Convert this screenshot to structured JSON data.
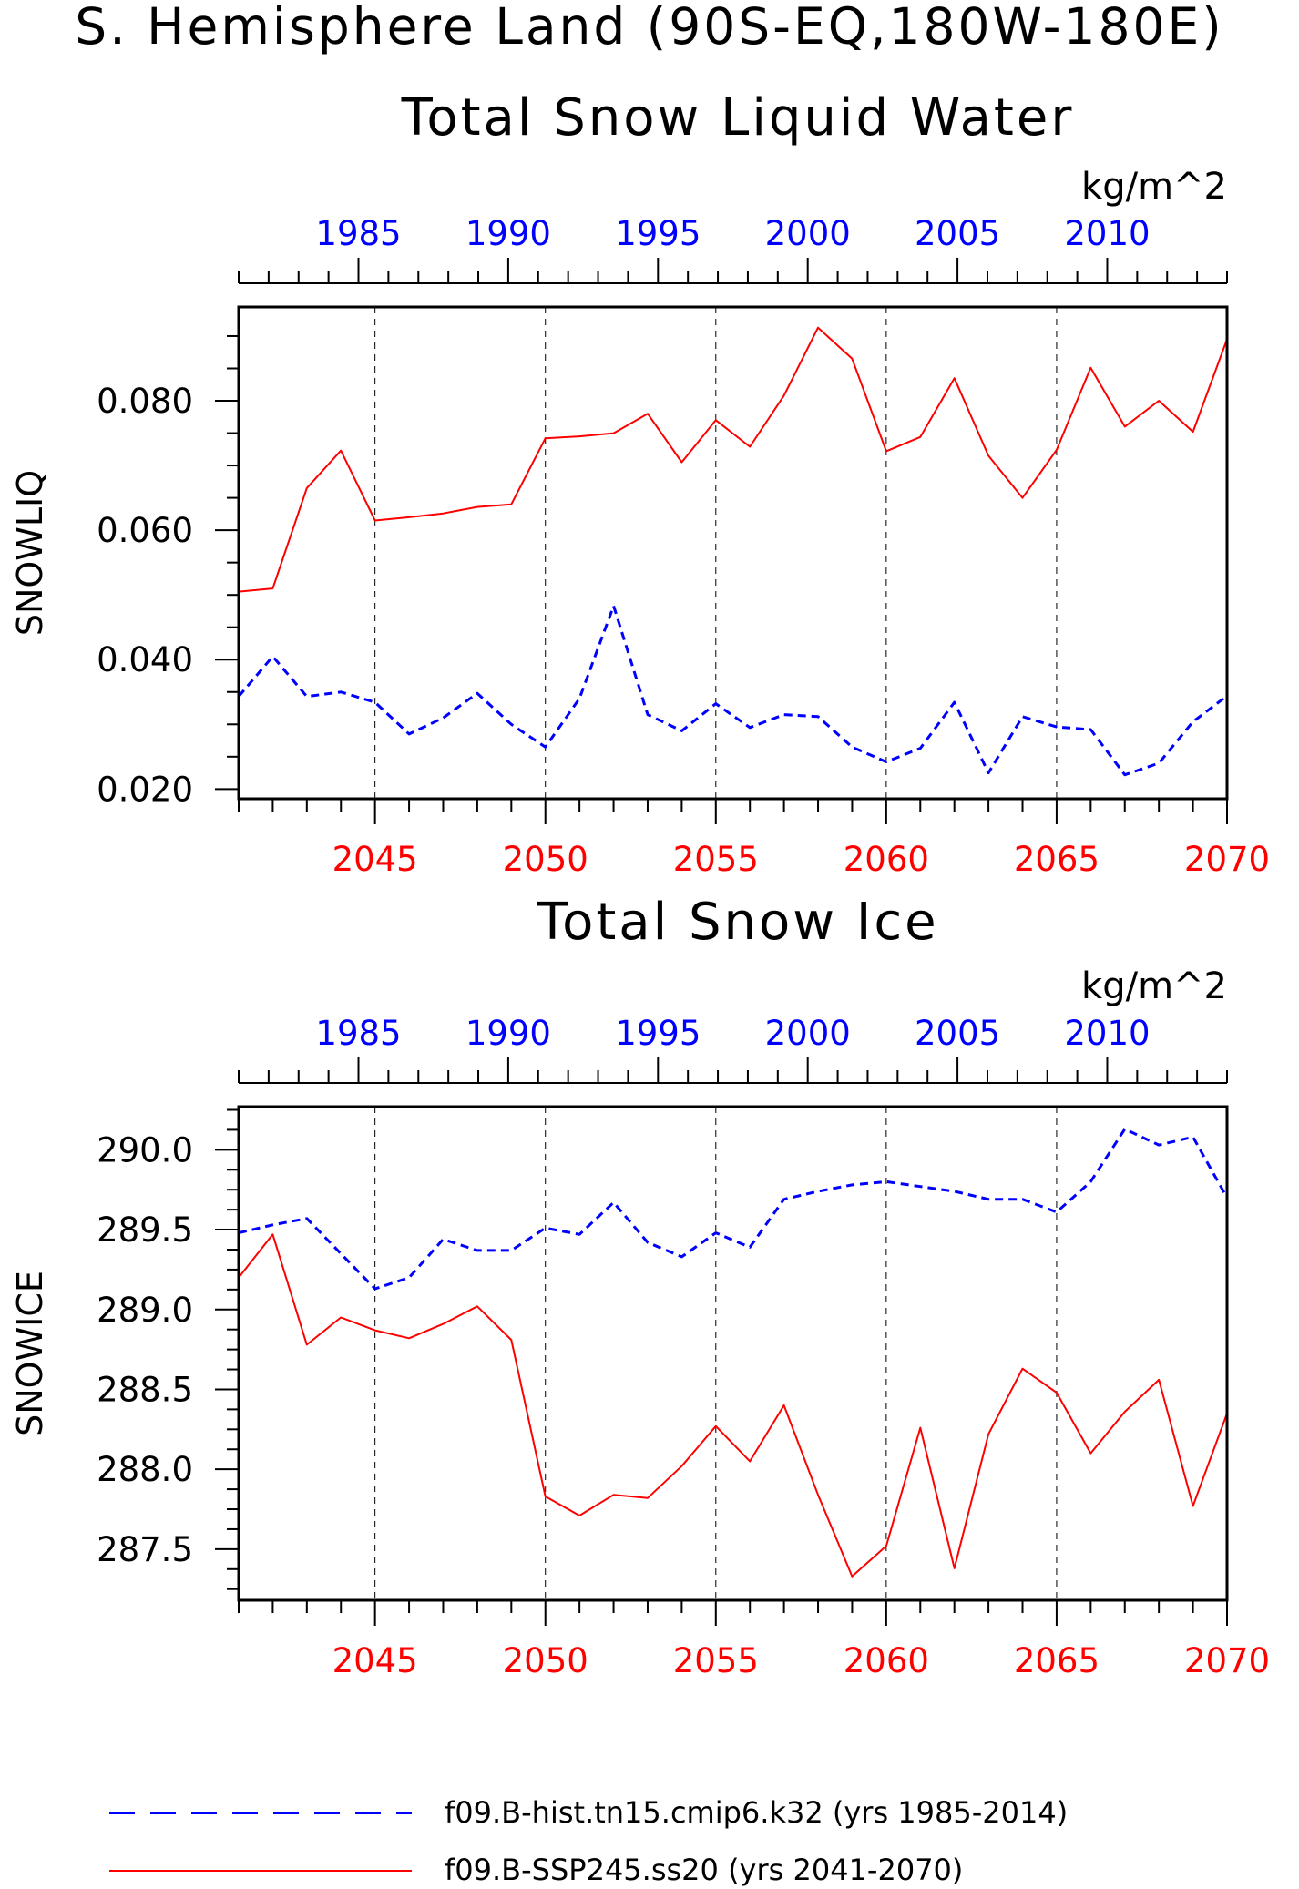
{
  "page": {
    "title_line1": "S. Hemisphere Land (90S-EQ,180W-180E)"
  },
  "legend": {
    "hist_label": "f09.B-hist.tn15.cmip6.k32 (yrs 1985-2014)",
    "ssp_label": "f09.B-SSP245.ss20 (yrs 2041-2070)"
  },
  "colors": {
    "hist": "#0000ff",
    "ssp": "#ff0000",
    "frame": "#000000",
    "grid": "#000000"
  },
  "chart_data": [
    {
      "type": "line",
      "title": "Total Snow Liquid Water",
      "units": "kg/m^2",
      "ylabel": "SNOWLIQ",
      "ylim": [
        0.0185,
        0.0945
      ],
      "yticks": [
        0.02,
        0.04,
        0.06,
        0.08
      ],
      "ytick_labels": [
        "0.020",
        "0.040",
        "0.060",
        "0.080"
      ],
      "x_bottom": {
        "range": [
          2041,
          2070
        ],
        "ticks": [
          2045,
          2050,
          2055,
          2060,
          2065,
          2070
        ],
        "tick_labels": [
          "2045",
          "2050",
          "2055",
          "2060",
          "2065",
          "2070"
        ]
      },
      "x_top": {
        "range": [
          1981,
          2014
        ],
        "ticks": [
          1985,
          1990,
          1995,
          2000,
          2005,
          2010
        ],
        "tick_labels": [
          "1985",
          "1990",
          "1995",
          "2000",
          "2005",
          "2010"
        ]
      },
      "grid": "vertical dashed at bottom-axis major ticks",
      "series": [
        {
          "name": "f09.B-SSP245.ss20 (yrs 2041-2070)",
          "style": "solid",
          "x": [
            2041,
            2042,
            2043,
            2044,
            2045,
            2046,
            2047,
            2048,
            2049,
            2050,
            2051,
            2052,
            2053,
            2054,
            2055,
            2056,
            2057,
            2058,
            2059,
            2060,
            2061,
            2062,
            2063,
            2064,
            2065,
            2066,
            2067,
            2068,
            2069,
            2070
          ],
          "values": [
            0.0505,
            0.051,
            0.0665,
            0.0723,
            0.0615,
            0.062,
            0.0626,
            0.0636,
            0.064,
            0.0742,
            0.0745,
            0.075,
            0.078,
            0.0705,
            0.077,
            0.0729,
            0.0808,
            0.0913,
            0.0865,
            0.0722,
            0.0744,
            0.0835,
            0.0715,
            0.065,
            0.0724,
            0.0851,
            0.076,
            0.08,
            0.0752,
            0.0895
          ]
        },
        {
          "name": "f09.B-hist.tn15.cmip6.k32 (yrs 1985-2014)",
          "style": "dashed",
          "x": [
            2041,
            2042,
            2043,
            2044,
            2045,
            2046,
            2047,
            2048,
            2049,
            2050,
            2051,
            2052,
            2053,
            2054,
            2055,
            2056,
            2057,
            2058,
            2059,
            2060,
            2061,
            2062,
            2063,
            2064,
            2065,
            2066,
            2067,
            2068,
            2069,
            2070
          ],
          "values": [
            0.0343,
            0.0405,
            0.0343,
            0.035,
            0.0334,
            0.0285,
            0.031,
            0.0348,
            0.03,
            0.0265,
            0.034,
            0.0483,
            0.0315,
            0.029,
            0.0332,
            0.0295,
            0.0315,
            0.0312,
            0.0265,
            0.0242,
            0.0263,
            0.0334,
            0.0225,
            0.0312,
            0.0296,
            0.0292,
            0.0222,
            0.024,
            0.0304,
            0.0344
          ]
        }
      ]
    },
    {
      "type": "line",
      "title": "Total Snow Ice",
      "units": "kg/m^2",
      "ylabel": "SNOWICE",
      "ylim": [
        287.18,
        290.27
      ],
      "yticks": [
        287.5,
        288.0,
        288.5,
        289.0,
        289.5,
        290.0
      ],
      "ytick_labels": [
        "287.5",
        "288.0",
        "288.5",
        "289.0",
        "289.5",
        "290.0"
      ],
      "x_bottom": {
        "range": [
          2041,
          2070
        ],
        "ticks": [
          2045,
          2050,
          2055,
          2060,
          2065,
          2070
        ],
        "tick_labels": [
          "2045",
          "2050",
          "2055",
          "2060",
          "2065",
          "2070"
        ]
      },
      "x_top": {
        "range": [
          1981,
          2014
        ],
        "ticks": [
          1985,
          1990,
          1995,
          2000,
          2005,
          2010
        ],
        "tick_labels": [
          "1985",
          "1990",
          "1995",
          "2000",
          "2005",
          "2010"
        ]
      },
      "grid": "vertical dashed at bottom-axis major ticks",
      "series": [
        {
          "name": "f09.B-SSP245.ss20 (yrs 2041-2070)",
          "style": "solid",
          "x": [
            2041,
            2042,
            2043,
            2044,
            2045,
            2046,
            2047,
            2048,
            2049,
            2050,
            2051,
            2052,
            2053,
            2054,
            2055,
            2056,
            2057,
            2058,
            2059,
            2060,
            2061,
            2062,
            2063,
            2064,
            2065,
            2066,
            2067,
            2068,
            2069,
            2070
          ],
          "values": [
            289.2,
            289.47,
            288.78,
            288.95,
            288.87,
            288.82,
            288.91,
            289.02,
            288.81,
            287.83,
            287.71,
            287.84,
            287.82,
            288.02,
            288.27,
            288.05,
            288.4,
            287.84,
            287.33,
            287.52,
            288.26,
            287.38,
            288.22,
            288.63,
            288.48,
            288.1,
            288.36,
            288.56,
            287.77,
            288.35
          ]
        },
        {
          "name": "f09.B-hist.tn15.cmip6.k32 (yrs 1985-2014)",
          "style": "dashed",
          "x": [
            2041,
            2042,
            2043,
            2044,
            2045,
            2046,
            2047,
            2048,
            2049,
            2050,
            2051,
            2052,
            2053,
            2054,
            2055,
            2056,
            2057,
            2058,
            2059,
            2060,
            2061,
            2062,
            2063,
            2064,
            2065,
            2066,
            2067,
            2068,
            2069,
            2070
          ],
          "values": [
            289.48,
            289.53,
            289.57,
            289.35,
            289.13,
            289.2,
            289.44,
            289.37,
            289.37,
            289.51,
            289.47,
            289.67,
            289.42,
            289.33,
            289.48,
            289.39,
            289.69,
            289.74,
            289.78,
            289.8,
            289.77,
            289.74,
            289.69,
            289.69,
            289.61,
            289.8,
            290.13,
            290.03,
            290.08,
            289.7
          ]
        }
      ]
    }
  ]
}
